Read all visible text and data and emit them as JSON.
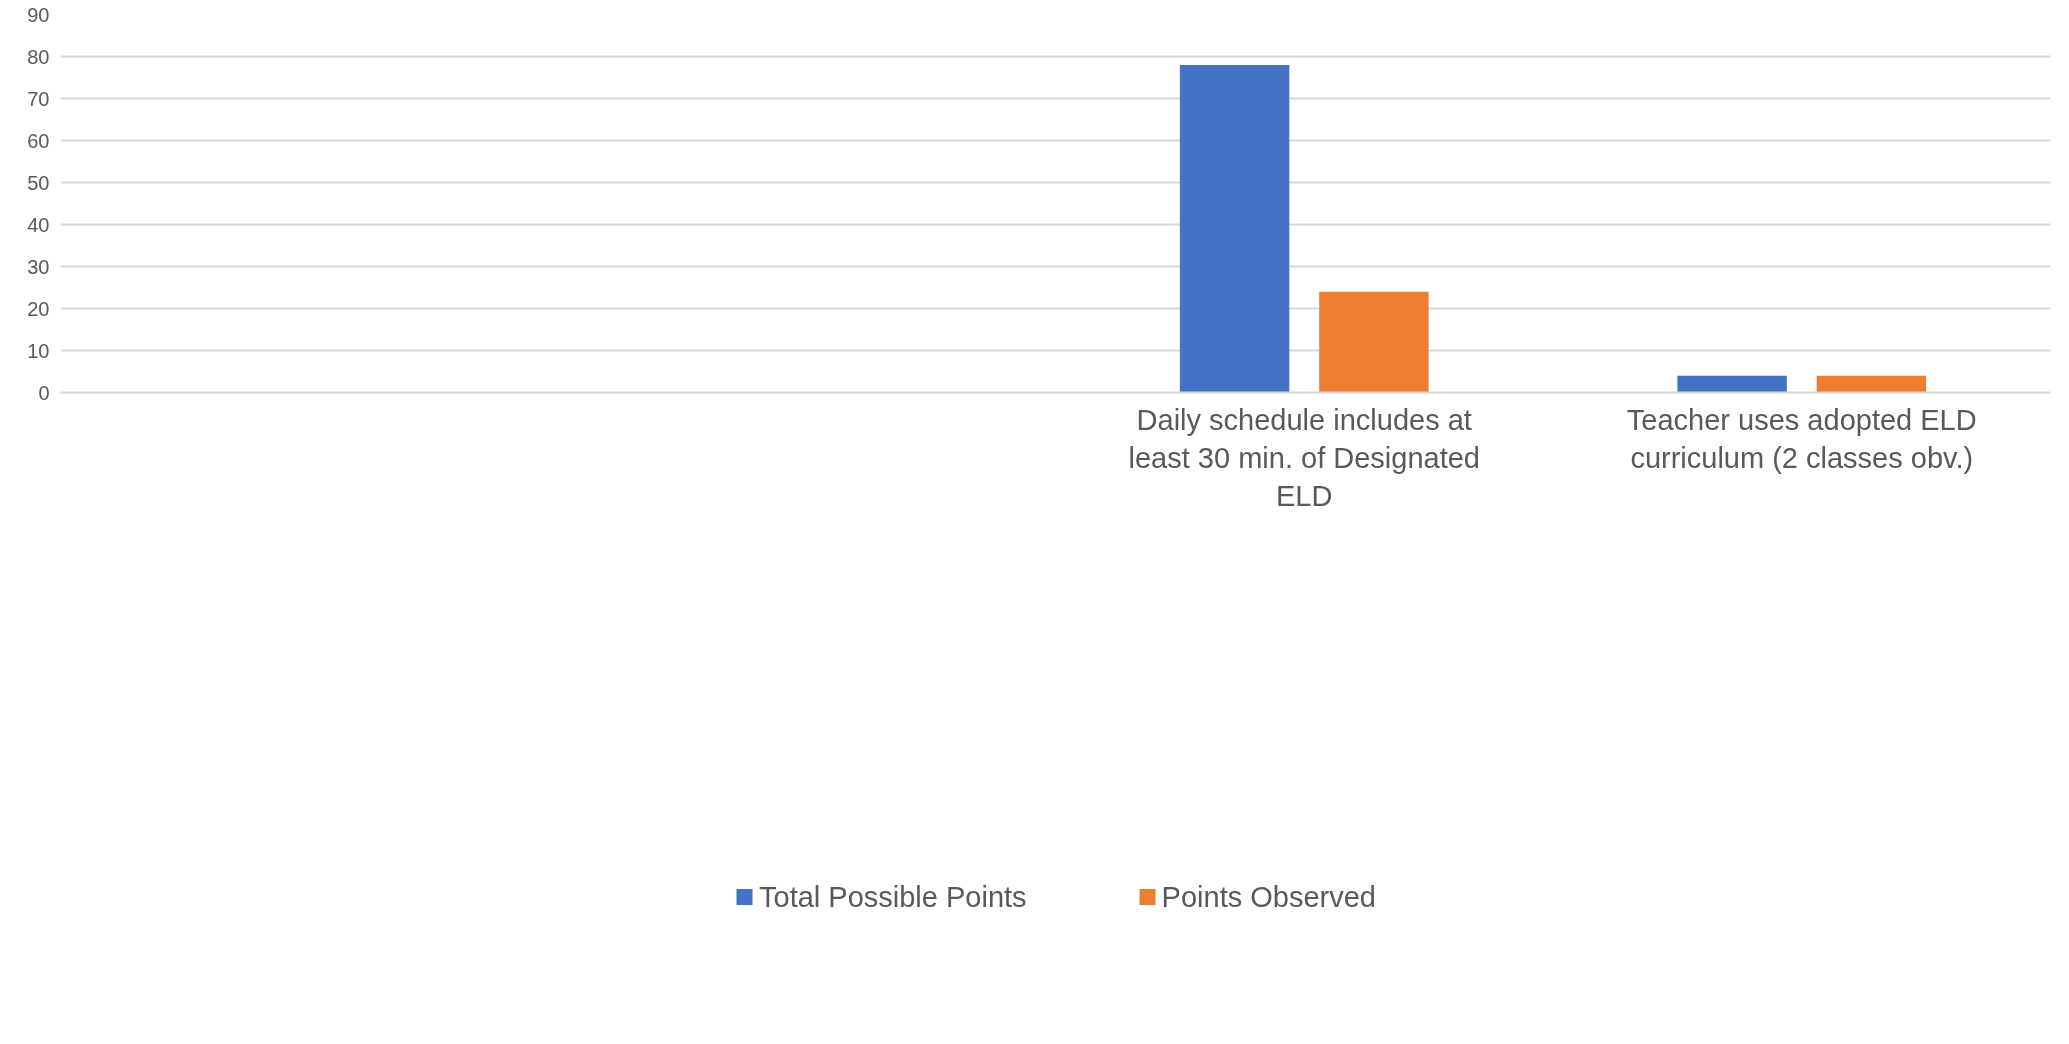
{
  "chart_data": {
    "type": "bar",
    "categories": [
      null,
      null,
      "Daily schedule includes at least 30 min. of Designated ELD",
      "Teacher uses adopted ELD curriculum (2 classes obv.)"
    ],
    "series": [
      {
        "name": "Total Possible Points",
        "color": "#4472c4",
        "values": [
          null,
          null,
          78,
          4
        ]
      },
      {
        "name": "Points Observed",
        "color": "#ed7d31",
        "values": [
          null,
          null,
          24,
          4
        ]
      }
    ],
    "ylim": [
      0,
      90
    ],
    "yticks": [
      0,
      10,
      20,
      30,
      40,
      50,
      60,
      70,
      80,
      90
    ],
    "grid": "y",
    "legend": "bottom"
  }
}
